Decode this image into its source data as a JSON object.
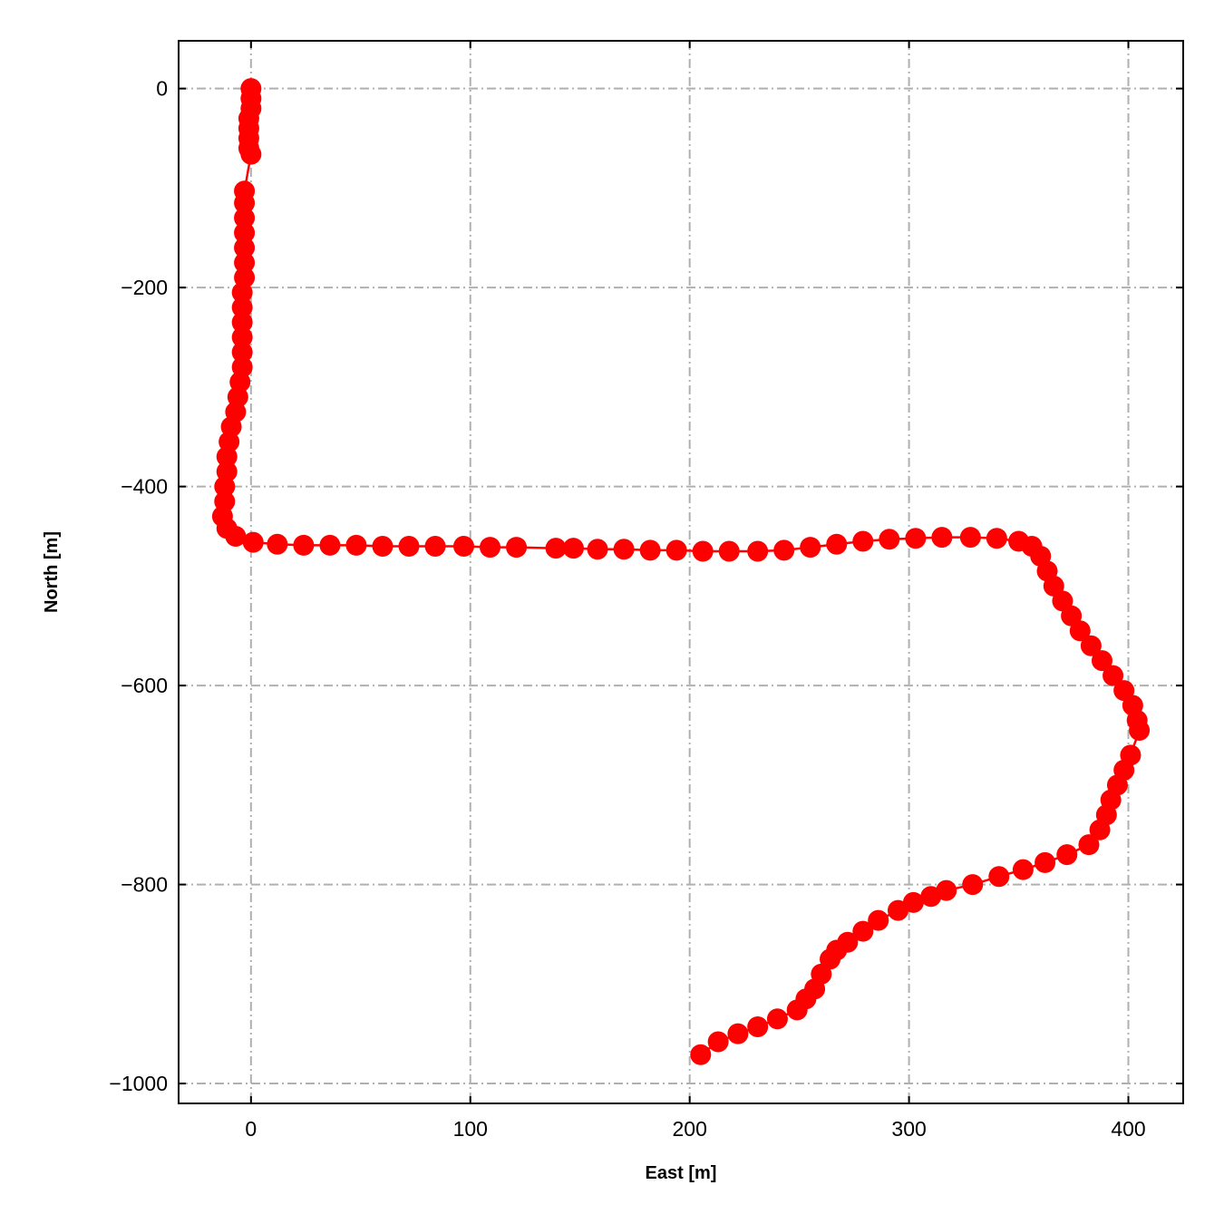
{
  "chart_data": {
    "type": "line",
    "title": "",
    "xlabel": "East [m]",
    "ylabel": "North [m]",
    "xlim": [
      -33,
      425
    ],
    "ylim": [
      -1020,
      48
    ],
    "xticks": [
      0,
      100,
      200,
      300,
      400
    ],
    "yticks": [
      0,
      -200,
      -400,
      -600,
      -800,
      -1000
    ],
    "xtick_labels": [
      "0",
      "100",
      "200",
      "300",
      "400"
    ],
    "ytick_labels": [
      "0",
      "−200",
      "−400",
      "−600",
      "−800",
      "−1000"
    ],
    "grid": true,
    "grid_style": "dash-dot",
    "marker": "circle",
    "color": "#ff0000",
    "grid_color": "#b0b0b0",
    "series": [
      {
        "x": [
          0,
          0,
          0,
          -1,
          -1,
          -1,
          -1,
          0,
          -3,
          -3,
          -3,
          -3,
          -3,
          -3,
          -3,
          -4,
          -4,
          -4,
          -4,
          -4,
          -4,
          -5,
          -6,
          -7,
          -9,
          -10,
          -11,
          -11,
          -12,
          -12,
          -13,
          -11,
          -7,
          1,
          12,
          24,
          36,
          48,
          60,
          72,
          84,
          97,
          109,
          121,
          139,
          147,
          158,
          170,
          182,
          194,
          206,
          218,
          231,
          243,
          255,
          267,
          279,
          291,
          303,
          315,
          328,
          340,
          350,
          356,
          360,
          363,
          366,
          370,
          374,
          378,
          383,
          388,
          393,
          398,
          402,
          404,
          405,
          401,
          398,
          395,
          392,
          390,
          387,
          382,
          372,
          362,
          352,
          341,
          329,
          317,
          310,
          302,
          295,
          286,
          279,
          272,
          267,
          264,
          260,
          257,
          253,
          249,
          240,
          231,
          222,
          213,
          205
        ],
        "y": [
          0,
          -10,
          -20,
          -30,
          -40,
          -50,
          -60,
          -66,
          -103,
          -115,
          -130,
          -145,
          -160,
          -175,
          -190,
          -205,
          -220,
          -235,
          -250,
          -265,
          -280,
          -295,
          -310,
          -325,
          -340,
          -355,
          -370,
          -385,
          -400,
          -415,
          -430,
          -442,
          -450,
          -456,
          -458,
          -459,
          -459,
          -459,
          -460,
          -460,
          -460,
          -460,
          -461,
          -461,
          -462,
          -462,
          -463,
          -463,
          -464,
          -464,
          -465,
          -465,
          -465,
          -464,
          -461,
          -458,
          -455,
          -453,
          -452,
          -451,
          -451,
          -452,
          -455,
          -460,
          -470,
          -485,
          -500,
          -515,
          -530,
          -545,
          -560,
          -575,
          -590,
          -605,
          -620,
          -635,
          -645,
          -670,
          -685,
          -700,
          -715,
          -730,
          -745,
          -760,
          -770,
          -778,
          -785,
          -792,
          -800,
          -806,
          -812,
          -818,
          -826,
          -836,
          -847,
          -858,
          -866,
          -875,
          -890,
          -905,
          -915,
          -926,
          -935,
          -943,
          -950,
          -958,
          -971
        ]
      }
    ]
  }
}
